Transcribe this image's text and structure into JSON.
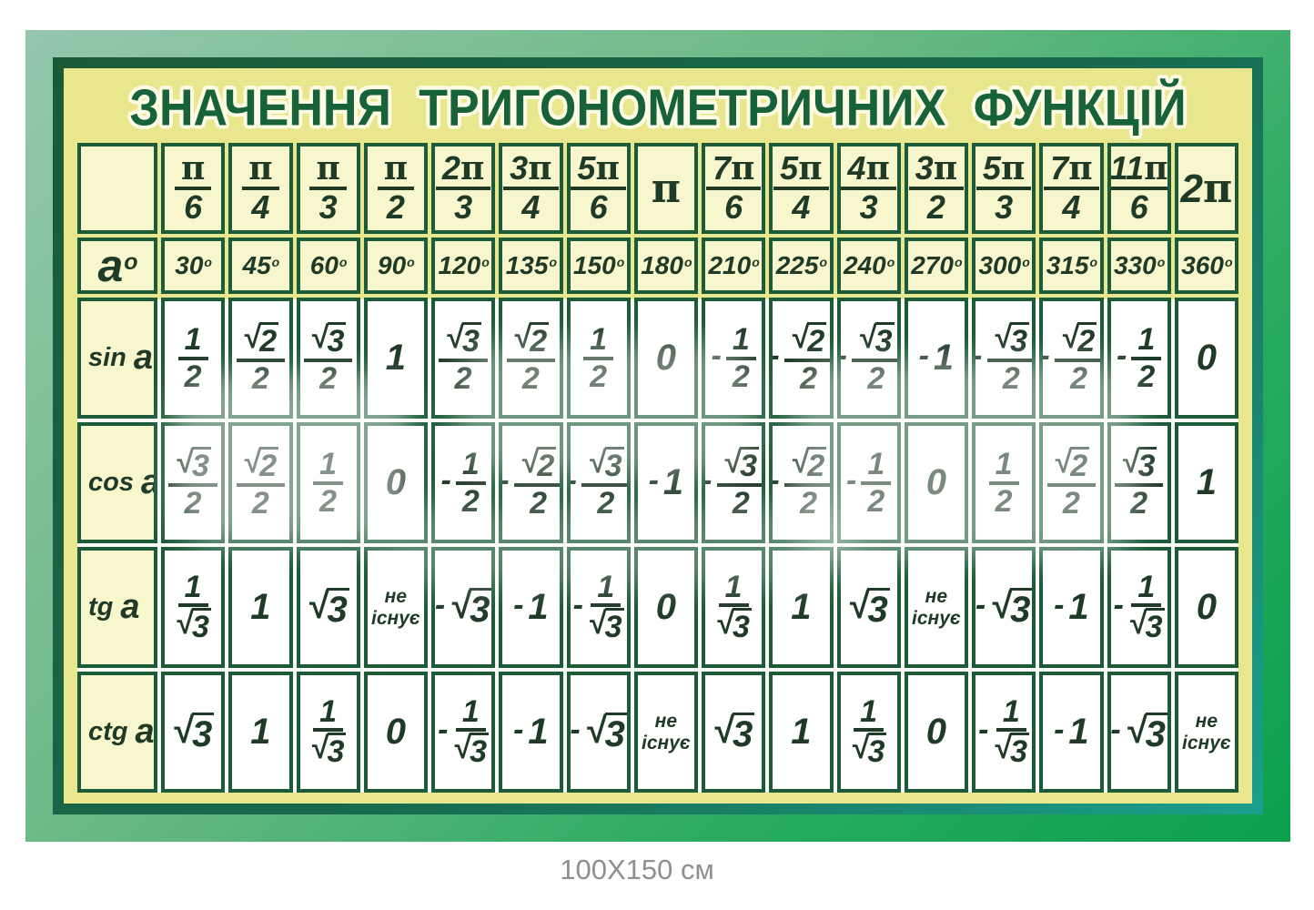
{
  "title": "ЗНАЧЕННЯ ТРИГОНОМЕТРИЧНИХ ФУНКЦІЙ",
  "size_caption": "100X150 см",
  "colors": {
    "outer_frame_start": "#95c7ac",
    "outer_frame_end": "#0aa04e",
    "inner_frame_start": "#1a5a37",
    "inner_frame_end": "#1b9f8c",
    "panel_yellow": "#e9e78d",
    "header_cell_yellow": "#f8f6cc",
    "grid_border_green": "#1b5b39",
    "text_dark_green": "#203a28",
    "title_green": "#176239",
    "caption_gray": "#8f8f8f"
  },
  "table": {
    "corner_radians_label": "",
    "degrees_row_symbol": "a",
    "degrees_mark": "o",
    "not_exists_label": "не існує",
    "radians": [
      "π/6",
      "π/4",
      "π/3",
      "π/2",
      "2π/3",
      "3π/4",
      "5π/6",
      "π",
      "7π/6",
      "5π/4",
      "4π/3",
      "3π/2",
      "5π/3",
      "7π/4",
      "11π/6",
      "2π"
    ],
    "degrees": [
      "30",
      "45",
      "60",
      "90",
      "120",
      "135",
      "150",
      "180",
      "210",
      "225",
      "240",
      "270",
      "300",
      "315",
      "330",
      "360"
    ],
    "rows": [
      {
        "label": "sin",
        "arg": "a",
        "values": [
          "1/2",
          "√2/2",
          "√3/2",
          "1",
          "√3/2",
          "√2/2",
          "1/2",
          "0",
          "-1/2",
          "-√2/2",
          "-√3/2",
          "-1",
          "-√3/2",
          "-√2/2",
          "-1/2",
          "0"
        ]
      },
      {
        "label": "cos",
        "arg": "a",
        "values": [
          "√3/2",
          "√2/2",
          "1/2",
          "0",
          "-1/2",
          "-√2/2",
          "-√3/2",
          "-1",
          "-√3/2",
          "-√2/2",
          "-1/2",
          "0",
          "1/2",
          "√2/2",
          "√3/2",
          "1"
        ]
      },
      {
        "label": "tg",
        "arg": "a",
        "values": [
          "1/√3",
          "1",
          "√3",
          "не існує",
          "-√3",
          "-1",
          "-1/√3",
          "0",
          "1/√3",
          "1",
          "√3",
          "не існує",
          "-√3",
          "-1",
          "-1/√3",
          "0"
        ]
      },
      {
        "label": "ctg",
        "arg": "a",
        "values": [
          "√3",
          "1",
          "1/√3",
          "0",
          "-1/√3",
          "-1",
          "-√3",
          "не існує",
          "√3",
          "1",
          "1/√3",
          "0",
          "-1/√3",
          "-1",
          "-√3",
          "не існує"
        ]
      }
    ]
  }
}
